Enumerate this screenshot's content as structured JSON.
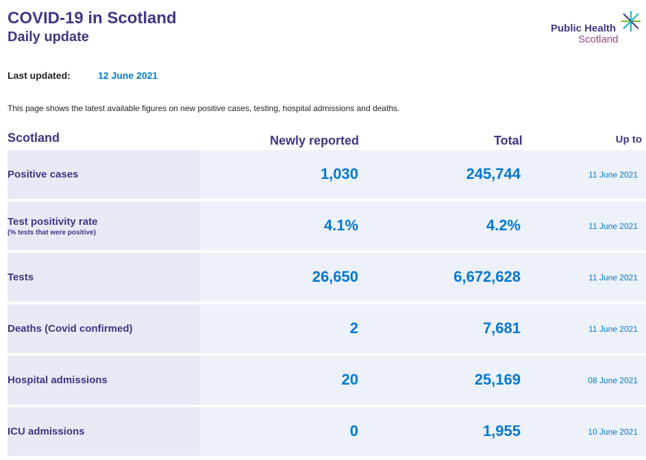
{
  "header": {
    "title": "COVID-19 in Scotland",
    "subtitle": "Daily update",
    "logo_line1": "Public Health",
    "logo_line2": "Scotland"
  },
  "last_updated": {
    "label": "Last updated:",
    "value": "12 June 2021"
  },
  "intro": "This page shows the latest available figures on new positive cases, testing, hospital admissions and deaths.",
  "table": {
    "headers": {
      "region": "Scotland",
      "newly_reported": "Newly reported",
      "total": "Total",
      "up_to": "Up to"
    },
    "rows": [
      {
        "label": "Positive cases",
        "sublabel": "",
        "new": "1,030",
        "total": "245,744",
        "up_to": "11 June 2021"
      },
      {
        "label": "Test positivity rate",
        "sublabel": "(% tests that were positive)",
        "new": "4.1%",
        "total": "4.2%",
        "up_to": "11 June 2021"
      },
      {
        "label": "Tests",
        "sublabel": "",
        "new": "26,650",
        "total": "6,672,628",
        "up_to": "11 June 2021"
      },
      {
        "label": "Deaths (Covid confirmed)",
        "sublabel": "",
        "new": "2",
        "total": "7,681",
        "up_to": "11 June 2021"
      },
      {
        "label": "Hospital admissions",
        "sublabel": "",
        "new": "20",
        "total": "25,169",
        "up_to": "08 June 2021"
      },
      {
        "label": "ICU admissions",
        "sublabel": "",
        "new": "0",
        "total": "1,955",
        "up_to": "10 June 2021"
      }
    ]
  },
  "colors": {
    "brand_purple": "#3f3685",
    "value_blue": "#0078d4",
    "logo_magenta": "#9b4393",
    "logo_teal": "#1bb1c4",
    "logo_green": "#7ab51d"
  }
}
